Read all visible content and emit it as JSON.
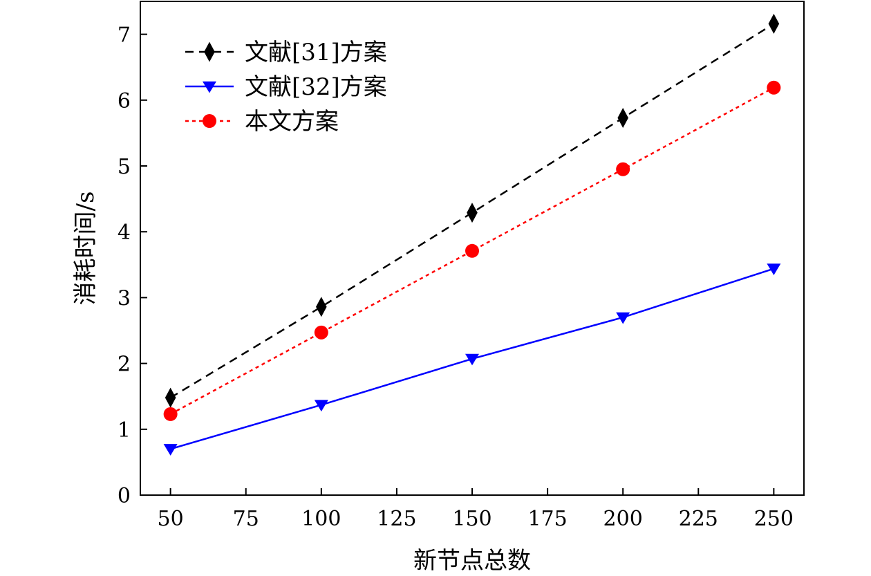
{
  "chart_data": {
    "type": "line",
    "title": "",
    "xlabel": "新节点总数",
    "ylabel": "消耗时间/s",
    "xlim": [
      40,
      260
    ],
    "ylim": [
      0,
      7.5
    ],
    "xticks": [
      50,
      75,
      100,
      125,
      150,
      175,
      200,
      225,
      250
    ],
    "yticks": [
      0,
      1,
      2,
      3,
      4,
      5,
      6,
      7
    ],
    "grid": false,
    "legend_position": "top-left",
    "x": [
      50,
      100,
      150,
      200,
      250
    ],
    "series": [
      {
        "name": "文献[31]方案",
        "values": [
          1.48,
          2.86,
          4.29,
          5.73,
          7.16
        ],
        "color": "#000000",
        "marker": "diamond",
        "line_style": "dashed"
      },
      {
        "name": "文献[32]方案",
        "values": [
          0.7,
          1.37,
          2.07,
          2.7,
          3.44
        ],
        "color": "#0000ff",
        "marker": "triangle-down",
        "line_style": "solid"
      },
      {
        "name": "本文方案",
        "values": [
          1.23,
          2.47,
          3.71,
          4.95,
          6.19
        ],
        "color": "#ff0000",
        "marker": "circle",
        "line_style": "dotted"
      }
    ]
  }
}
